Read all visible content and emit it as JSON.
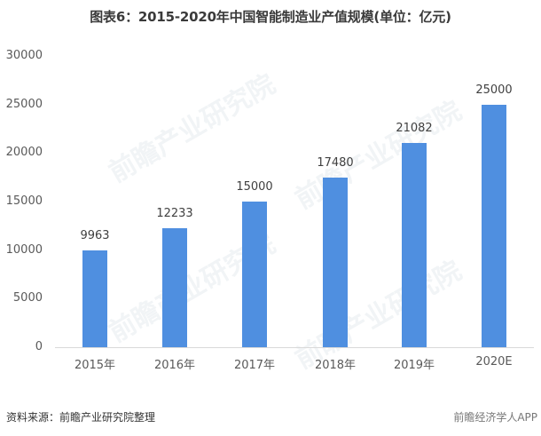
{
  "title": "图表6：2015-2020年中国智能制造业产值规模(单位：亿元)",
  "source": "资料来源：前瞻产业研究院整理",
  "brand": "前瞻经济学人APP",
  "watermark": "前瞻产业研究院",
  "colors": {
    "bar": "#4f8fe0",
    "axis": "#d9d9d9"
  },
  "y_ticks": [
    "30000",
    "25000",
    "20000",
    "15000",
    "10000",
    "5000",
    "0"
  ],
  "chart_data": {
    "type": "bar",
    "title": "图表6：2015-2020年中国智能制造业产值规模(单位：亿元)",
    "xlabel": "",
    "ylabel": "亿元",
    "categories": [
      "2015年",
      "2016年",
      "2017年",
      "2018年",
      "2019年",
      "2020E"
    ],
    "values": [
      9963,
      12233,
      15000,
      17480,
      21082,
      25000
    ],
    "data_labels": [
      "9963",
      "12233",
      "15000",
      "17480",
      "21082",
      "25000"
    ],
    "ylim": [
      0,
      30000
    ],
    "y_tick_step": 5000,
    "grid": false,
    "legend": null
  }
}
